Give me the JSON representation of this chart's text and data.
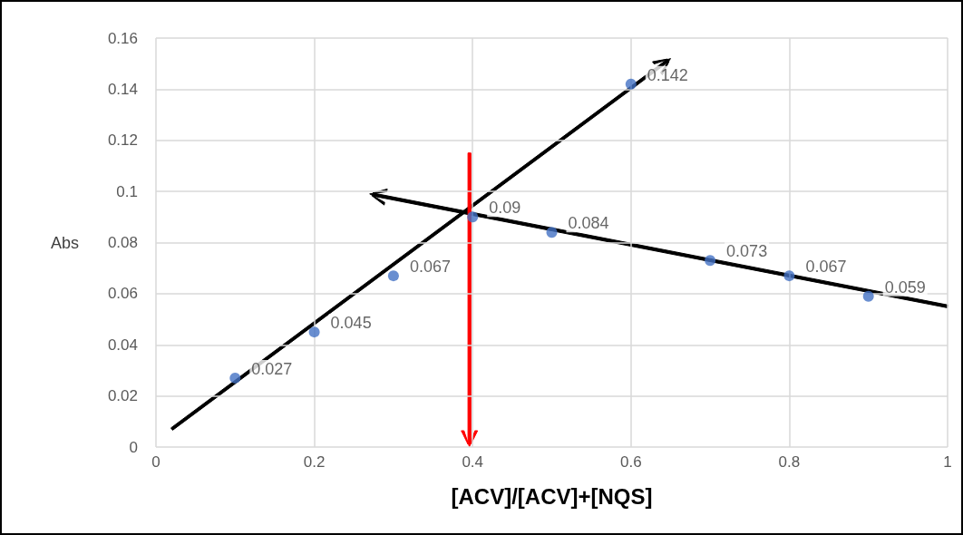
{
  "chart_data": {
    "type": "scatter",
    "xlabel": "[ACV]/[ACV]+[NQS]",
    "ylabel": "Abs",
    "xlim": [
      0,
      1
    ],
    "xticks": [
      0,
      0.2,
      0.4,
      0.6,
      0.8,
      1
    ],
    "ylim": [
      0,
      0.16
    ],
    "yticks": [
      0,
      0.02,
      0.04,
      0.06,
      0.08,
      0.1,
      0.12,
      0.14,
      0.16
    ],
    "grid": true,
    "marker": "circle",
    "data_labels": true,
    "series": [
      {
        "color": "#4472c4",
        "x": [
          0.1,
          0.2,
          0.3,
          0.4,
          0.5,
          0.6,
          0.7,
          0.8,
          0.9
        ],
        "values": [
          0.027,
          0.045,
          0.067,
          0.09,
          0.084,
          0.142,
          0.073,
          0.067,
          0.059
        ]
      }
    ]
  }
}
